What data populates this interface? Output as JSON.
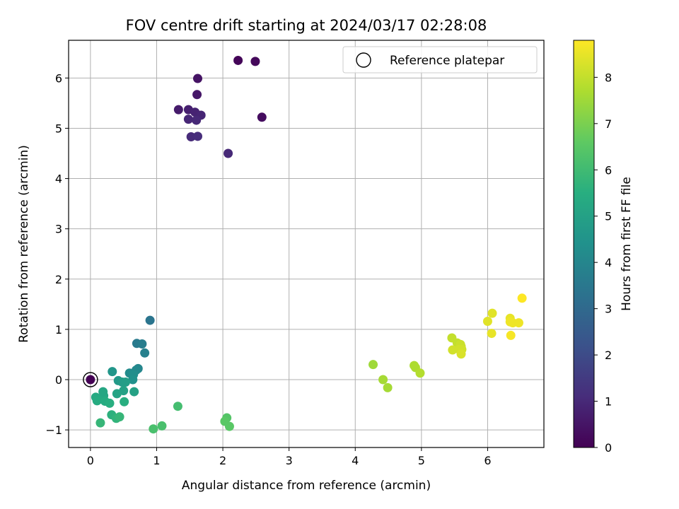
{
  "chart_data": {
    "type": "scatter",
    "title": "FOV centre drift starting at 2024/03/17 02:28:08",
    "xlabel": "Angular distance from reference (arcmin)",
    "ylabel": "Rotation from reference (arcmin)",
    "xlim": [
      -0.33,
      6.85
    ],
    "ylim": [
      -1.35,
      6.75
    ],
    "xticks": [
      0,
      1,
      2,
      3,
      4,
      5,
      6
    ],
    "yticks": [
      -1,
      0,
      1,
      2,
      3,
      4,
      5,
      6
    ],
    "xtick_labels": [
      "0",
      "1",
      "2",
      "3",
      "4",
      "5",
      "6"
    ],
    "ytick_labels": [
      "−1",
      "0",
      "1",
      "2",
      "3",
      "4",
      "5",
      "6"
    ],
    "grid": true,
    "legend": {
      "placement": "top-right",
      "entries": [
        "Reference platepar"
      ]
    },
    "reference_point": {
      "x": 0,
      "y": 0
    },
    "colorbar": {
      "label": "Hours from first FF file",
      "range": [
        0,
        8.8
      ],
      "ticks": [
        0,
        1,
        2,
        3,
        4,
        5,
        6,
        7,
        8
      ],
      "tick_labels": [
        "0",
        "1",
        "2",
        "3",
        "4",
        "5",
        "6",
        "7",
        "8"
      ],
      "colormap": "viridis"
    },
    "points": [
      {
        "x": 0.0,
        "y": 0.0,
        "c": 0.0
      },
      {
        "x": 2.23,
        "y": 6.35,
        "c": 0.1
      },
      {
        "x": 2.49,
        "y": 6.33,
        "c": 0.2
      },
      {
        "x": 2.59,
        "y": 5.22,
        "c": 0.3
      },
      {
        "x": 1.62,
        "y": 5.99,
        "c": 0.45
      },
      {
        "x": 1.61,
        "y": 5.67,
        "c": 0.55
      },
      {
        "x": 1.33,
        "y": 5.37,
        "c": 0.65
      },
      {
        "x": 1.48,
        "y": 5.37,
        "c": 0.75
      },
      {
        "x": 1.58,
        "y": 5.32,
        "c": 0.85
      },
      {
        "x": 1.67,
        "y": 5.26,
        "c": 0.9
      },
      {
        "x": 1.48,
        "y": 5.18,
        "c": 0.95
      },
      {
        "x": 1.6,
        "y": 5.16,
        "c": 1.0
      },
      {
        "x": 1.52,
        "y": 4.83,
        "c": 1.05
      },
      {
        "x": 1.62,
        "y": 4.84,
        "c": 1.1
      },
      {
        "x": 2.08,
        "y": 4.5,
        "c": 1.0
      },
      {
        "x": 0.9,
        "y": 1.18,
        "c": 3.4
      },
      {
        "x": 0.7,
        "y": 0.72,
        "c": 3.6
      },
      {
        "x": 0.78,
        "y": 0.71,
        "c": 3.7
      },
      {
        "x": 0.82,
        "y": 0.53,
        "c": 3.8
      },
      {
        "x": 0.72,
        "y": 0.22,
        "c": 4.0
      },
      {
        "x": 0.69,
        "y": 0.19,
        "c": 4.1
      },
      {
        "x": 0.59,
        "y": 0.13,
        "c": 4.2
      },
      {
        "x": 0.65,
        "y": 0.1,
        "c": 4.3
      },
      {
        "x": 0.64,
        "y": 0.0,
        "c": 4.4
      },
      {
        "x": 0.33,
        "y": 0.16,
        "c": 4.6
      },
      {
        "x": 0.42,
        "y": -0.02,
        "c": 4.7
      },
      {
        "x": 0.48,
        "y": -0.05,
        "c": 4.8
      },
      {
        "x": 0.53,
        "y": -0.05,
        "c": 4.9
      },
      {
        "x": 0.5,
        "y": -0.22,
        "c": 5.0
      },
      {
        "x": 0.66,
        "y": -0.24,
        "c": 5.0
      },
      {
        "x": 0.4,
        "y": -0.28,
        "c": 5.1
      },
      {
        "x": 0.19,
        "y": -0.24,
        "c": 5.2
      },
      {
        "x": 0.2,
        "y": -0.32,
        "c": 5.2
      },
      {
        "x": 0.08,
        "y": -0.35,
        "c": 5.3
      },
      {
        "x": 0.12,
        "y": -0.4,
        "c": 5.3
      },
      {
        "x": 0.1,
        "y": -0.42,
        "c": 5.4
      },
      {
        "x": 0.22,
        "y": -0.43,
        "c": 5.4
      },
      {
        "x": 0.29,
        "y": -0.47,
        "c": 5.5
      },
      {
        "x": 0.51,
        "y": -0.44,
        "c": 5.5
      },
      {
        "x": 0.32,
        "y": -0.7,
        "c": 5.6
      },
      {
        "x": 0.39,
        "y": -0.77,
        "c": 5.7
      },
      {
        "x": 0.44,
        "y": -0.74,
        "c": 5.8
      },
      {
        "x": 0.15,
        "y": -0.86,
        "c": 5.8
      },
      {
        "x": 1.32,
        "y": -0.53,
        "c": 6.1
      },
      {
        "x": 0.95,
        "y": -0.98,
        "c": 6.2
      },
      {
        "x": 1.08,
        "y": -0.92,
        "c": 6.2
      },
      {
        "x": 2.06,
        "y": -0.76,
        "c": 6.4
      },
      {
        "x": 2.03,
        "y": -0.83,
        "c": 6.5
      },
      {
        "x": 2.1,
        "y": -0.93,
        "c": 6.5
      },
      {
        "x": 4.27,
        "y": 0.3,
        "c": 7.5
      },
      {
        "x": 4.42,
        "y": 0.0,
        "c": 7.6
      },
      {
        "x": 4.49,
        "y": -0.16,
        "c": 7.6
      },
      {
        "x": 4.89,
        "y": 0.28,
        "c": 7.7
      },
      {
        "x": 4.91,
        "y": 0.24,
        "c": 7.7
      },
      {
        "x": 4.98,
        "y": 0.13,
        "c": 7.8
      },
      {
        "x": 5.46,
        "y": 0.83,
        "c": 8.0
      },
      {
        "x": 5.54,
        "y": 0.73,
        "c": 8.0
      },
      {
        "x": 5.59,
        "y": 0.7,
        "c": 8.1
      },
      {
        "x": 5.6,
        "y": 0.66,
        "c": 8.1
      },
      {
        "x": 5.47,
        "y": 0.59,
        "c": 8.2
      },
      {
        "x": 5.57,
        "y": 0.6,
        "c": 8.2
      },
      {
        "x": 5.61,
        "y": 0.6,
        "c": 8.2
      },
      {
        "x": 5.6,
        "y": 0.51,
        "c": 8.3
      },
      {
        "x": 6.0,
        "y": 1.16,
        "c": 8.4
      },
      {
        "x": 6.07,
        "y": 1.32,
        "c": 8.4
      },
      {
        "x": 6.06,
        "y": 0.92,
        "c": 8.5
      },
      {
        "x": 6.34,
        "y": 1.22,
        "c": 8.5
      },
      {
        "x": 6.34,
        "y": 1.15,
        "c": 8.6
      },
      {
        "x": 6.38,
        "y": 1.13,
        "c": 8.6
      },
      {
        "x": 6.47,
        "y": 1.13,
        "c": 8.6
      },
      {
        "x": 6.35,
        "y": 0.88,
        "c": 8.7
      },
      {
        "x": 6.52,
        "y": 1.62,
        "c": 8.8
      }
    ]
  }
}
